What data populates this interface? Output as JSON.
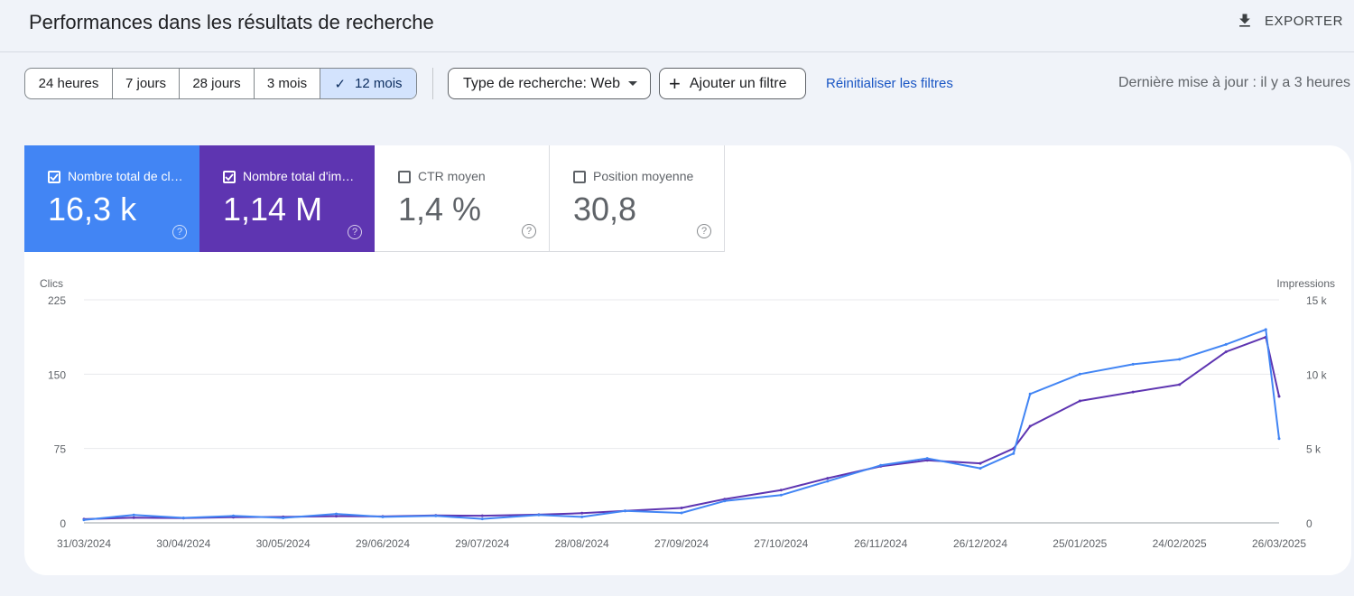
{
  "header": {
    "title": "Performances dans les résultats de recherche",
    "export_label": "EXPORTER",
    "export_icon": "download-icon"
  },
  "toolbar": {
    "ranges": [
      {
        "label": "24 heures",
        "active": false
      },
      {
        "label": "7 jours",
        "active": false
      },
      {
        "label": "28 jours",
        "active": false
      },
      {
        "label": "3 mois",
        "active": false
      },
      {
        "label": "12 mois",
        "active": true
      }
    ],
    "search_type": "Type de recherche: Web",
    "add_filter": "Ajouter un filtre",
    "reset_filters": "Réinitialiser les filtres",
    "last_update": "Dernière mise à jour : il y a 3 heures"
  },
  "metrics": [
    {
      "label": "Nombre total de clics",
      "value": "16,3 k",
      "checked": true,
      "color": "#4285f4"
    },
    {
      "label": "Nombre total d'impressions",
      "value": "1,14 M",
      "checked": true,
      "color": "#5e35b1"
    },
    {
      "label": "CTR moyen",
      "value": "1,4 %",
      "checked": false
    },
    {
      "label": "Position moyenne",
      "value": "30,8",
      "checked": false
    }
  ],
  "chart_data": {
    "type": "line",
    "left_axis_title": "Clics",
    "right_axis_title": "Impressions",
    "left_ticks": [
      "0",
      "75",
      "150",
      "225"
    ],
    "right_ticks": [
      "0",
      "5 k",
      "10 k",
      "15 k"
    ],
    "ylim_left": [
      0,
      225
    ],
    "ylim_right": [
      0,
      15000
    ],
    "x_ticks": [
      "31/03/2024",
      "30/04/2024",
      "30/05/2024",
      "29/06/2024",
      "29/07/2024",
      "28/08/2024",
      "27/09/2024",
      "27/10/2024",
      "26/11/2024",
      "26/12/2024",
      "25/01/2025",
      "24/02/2025",
      "26/03/2025"
    ],
    "x_dates": [
      "2024-03-31",
      "2024-04-30",
      "2024-05-30",
      "2024-06-29",
      "2024-07-29",
      "2024-08-28",
      "2024-09-27",
      "2024-10-27",
      "2024-11-26",
      "2024-12-26",
      "2025-01-25",
      "2025-02-24",
      "2025-03-26"
    ],
    "grid": true,
    "series": [
      {
        "name": "Clics",
        "axis": "left",
        "color": "#4285f4",
        "points": [
          [
            "2024-03-31",
            3
          ],
          [
            "2024-04-15",
            8
          ],
          [
            "2024-04-30",
            5
          ],
          [
            "2024-05-15",
            7
          ],
          [
            "2024-05-30",
            5
          ],
          [
            "2024-06-15",
            9
          ],
          [
            "2024-06-29",
            6
          ],
          [
            "2024-07-15",
            7
          ],
          [
            "2024-07-29",
            4
          ],
          [
            "2024-08-15",
            8
          ],
          [
            "2024-08-28",
            6
          ],
          [
            "2024-09-10",
            12
          ],
          [
            "2024-09-27",
            10
          ],
          [
            "2024-10-10",
            22
          ],
          [
            "2024-10-27",
            28
          ],
          [
            "2024-11-10",
            42
          ],
          [
            "2024-11-26",
            58
          ],
          [
            "2024-12-10",
            65
          ],
          [
            "2024-12-26",
            55
          ],
          [
            "2025-01-05",
            70
          ],
          [
            "2025-01-10",
            130
          ],
          [
            "2025-01-25",
            150
          ],
          [
            "2025-02-10",
            160
          ],
          [
            "2025-02-24",
            165
          ],
          [
            "2025-03-10",
            180
          ],
          [
            "2025-03-22",
            195
          ],
          [
            "2025-03-26",
            85
          ]
        ]
      },
      {
        "name": "Impressions",
        "axis": "right",
        "color": "#5e35b1",
        "points": [
          [
            "2024-03-31",
            250
          ],
          [
            "2024-04-15",
            350
          ],
          [
            "2024-04-30",
            320
          ],
          [
            "2024-05-15",
            380
          ],
          [
            "2024-05-30",
            400
          ],
          [
            "2024-06-15",
            450
          ],
          [
            "2024-06-29",
            430
          ],
          [
            "2024-07-15",
            500
          ],
          [
            "2024-07-29",
            480
          ],
          [
            "2024-08-15",
            550
          ],
          [
            "2024-08-28",
            650
          ],
          [
            "2024-09-10",
            800
          ],
          [
            "2024-09-27",
            1000
          ],
          [
            "2024-10-10",
            1600
          ],
          [
            "2024-10-27",
            2200
          ],
          [
            "2024-11-10",
            3000
          ],
          [
            "2024-11-26",
            3800
          ],
          [
            "2024-12-10",
            4200
          ],
          [
            "2024-12-26",
            4000
          ],
          [
            "2025-01-05",
            5000
          ],
          [
            "2025-01-10",
            6500
          ],
          [
            "2025-01-25",
            8200
          ],
          [
            "2025-02-10",
            8800
          ],
          [
            "2025-02-24",
            9300
          ],
          [
            "2025-03-10",
            11500
          ],
          [
            "2025-03-22",
            12500
          ],
          [
            "2025-03-26",
            8500
          ]
        ]
      }
    ]
  }
}
